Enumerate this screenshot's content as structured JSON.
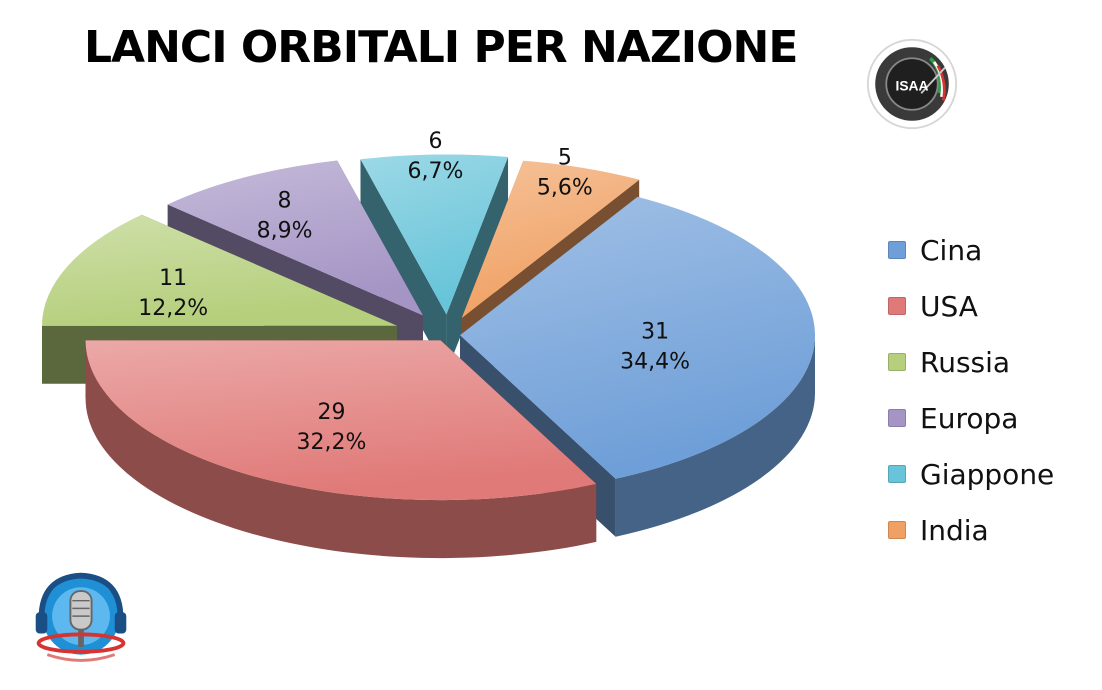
{
  "colors": {
    "Cina": "#6f9fd8",
    "USA": "#e07a78",
    "Russia": "#b5cf7c",
    "Europa": "#a595c5",
    "Giappone": "#67c4d9",
    "India": "#f0a062"
  },
  "chart_data": {
    "type": "pie",
    "title": "LANCI ORBITALI PER NAZIONE",
    "exploded": true,
    "three_d": true,
    "legend_position": "right",
    "slices": [
      {
        "name": "Cina",
        "value": 31,
        "percent": "34,4%"
      },
      {
        "name": "USA",
        "value": 29,
        "percent": "32,2%"
      },
      {
        "name": "Russia",
        "value": 11,
        "percent": "12,2%"
      },
      {
        "name": "Europa",
        "value": 8,
        "percent": "8,9%"
      },
      {
        "name": "Giappone",
        "value": 6,
        "percent": "6,7%"
      },
      {
        "name": "India",
        "value": 5,
        "percent": "5,6%"
      }
    ]
  },
  "logos": {
    "top_right": "ISAA",
    "bottom_left": "radio-microphone-logo"
  }
}
